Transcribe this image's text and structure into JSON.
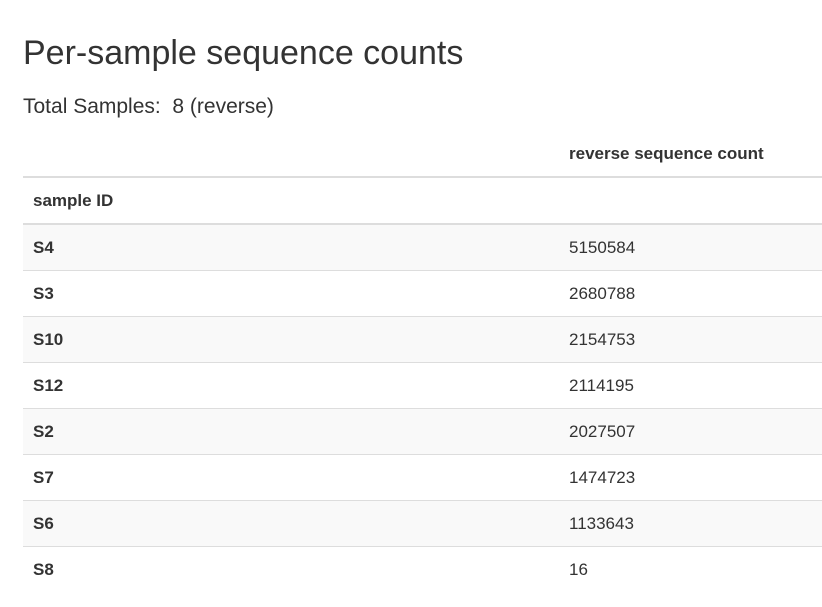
{
  "title": "Per-sample sequence counts",
  "summary": {
    "label": "Total Samples:",
    "value": "8 (reverse)"
  },
  "table": {
    "column_header": "reverse sequence count",
    "index_header": "sample ID",
    "rows": [
      {
        "id": "S4",
        "count": "5150584"
      },
      {
        "id": "S3",
        "count": "2680788"
      },
      {
        "id": "S10",
        "count": "2154753"
      },
      {
        "id": "S12",
        "count": "2114195"
      },
      {
        "id": "S2",
        "count": "2027507"
      },
      {
        "id": "S7",
        "count": "1474723"
      },
      {
        "id": "S6",
        "count": "1133643"
      },
      {
        "id": "S8",
        "count": "16"
      }
    ]
  }
}
